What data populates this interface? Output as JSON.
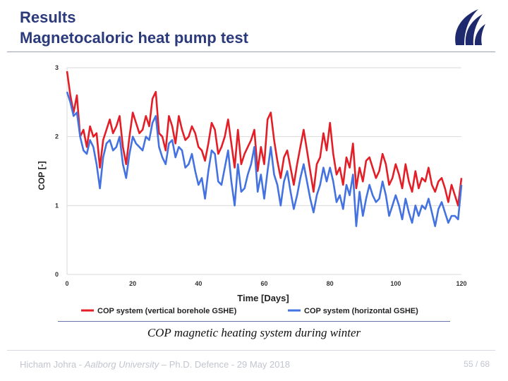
{
  "slide": {
    "title_line1": "Results",
    "title_line2": "Magnetocaloric heat pump test",
    "caption": "COP magnetic heating system during winter",
    "footer_author": "Hicham Johra - ",
    "footer_university": "Aalborg University",
    "footer_rest": " – Ph.D. Defence - 29 May 2018",
    "page_number": "55 / 68"
  },
  "colors": {
    "title": "#2b3a7a",
    "series_vertical": "#e41e26",
    "series_horizontal": "#4472e0",
    "logo": "#1f2a6e"
  },
  "logo_icon": "aau-logo-icon",
  "chart_data": {
    "type": "line",
    "xlabel": "Time [Days]",
    "ylabel": "COP [-]",
    "xlim": [
      0,
      120
    ],
    "ylim": [
      0,
      3
    ],
    "xticks": [
      "0",
      "20",
      "40",
      "60",
      "80",
      "100",
      "120"
    ],
    "yticks": [
      "0",
      "1",
      "2",
      "3"
    ],
    "grid": true,
    "legend_position": "bottom",
    "series": [
      {
        "name": "COP system (vertical borehole GSHE)",
        "color": "#e41e26",
        "x": [
          0,
          1,
          2,
          3,
          4,
          5,
          6,
          7,
          8,
          9,
          10,
          11,
          12,
          13,
          14,
          15,
          16,
          17,
          18,
          19,
          20,
          21,
          22,
          23,
          24,
          25,
          26,
          27,
          28,
          29,
          30,
          31,
          32,
          33,
          34,
          35,
          36,
          37,
          38,
          39,
          40,
          41,
          42,
          43,
          44,
          45,
          46,
          47,
          48,
          49,
          50,
          51,
          52,
          53,
          54,
          55,
          56,
          57,
          58,
          59,
          60,
          61,
          62,
          63,
          64,
          65,
          66,
          67,
          68,
          69,
          70,
          71,
          72,
          73,
          74,
          75,
          76,
          77,
          78,
          79,
          80,
          81,
          82,
          83,
          84,
          85,
          86,
          87,
          88,
          89,
          90,
          91,
          92,
          93,
          94,
          95,
          96,
          97,
          98,
          99,
          100,
          101,
          102,
          103,
          104,
          105,
          106,
          107,
          108,
          109,
          110,
          111,
          112,
          113,
          114,
          115,
          116,
          117,
          118,
          119,
          120
        ],
        "y": [
          2.95,
          2.6,
          2.35,
          2.6,
          2.0,
          2.1,
          1.85,
          2.15,
          2.0,
          2.05,
          1.55,
          1.95,
          2.1,
          2.25,
          2.05,
          2.15,
          2.3,
          1.85,
          1.6,
          2.0,
          2.35,
          2.2,
          2.05,
          2.1,
          2.3,
          2.15,
          2.55,
          2.65,
          2.05,
          2.0,
          1.8,
          2.3,
          2.15,
          1.9,
          2.3,
          2.1,
          1.95,
          2.0,
          2.15,
          2.05,
          1.85,
          1.8,
          1.65,
          1.9,
          2.2,
          2.1,
          1.75,
          1.85,
          2.0,
          2.25,
          1.9,
          1.55,
          2.1,
          1.6,
          1.75,
          1.85,
          1.95,
          2.1,
          1.5,
          1.85,
          1.6,
          2.25,
          2.35,
          1.95,
          1.65,
          1.4,
          1.7,
          1.8,
          1.55,
          1.3,
          1.6,
          1.85,
          2.1,
          1.8,
          1.5,
          1.2,
          1.6,
          1.7,
          2.05,
          1.8,
          2.2,
          1.75,
          1.45,
          1.55,
          1.3,
          1.7,
          1.55,
          1.9,
          1.25,
          1.55,
          1.35,
          1.65,
          1.7,
          1.55,
          1.4,
          1.5,
          1.75,
          1.6,
          1.3,
          1.4,
          1.6,
          1.45,
          1.25,
          1.6,
          1.35,
          1.2,
          1.5,
          1.25,
          1.4,
          1.35,
          1.55,
          1.3,
          1.2,
          1.35,
          1.4,
          1.25,
          1.05,
          1.3,
          1.15,
          1.0,
          1.4
        ]
      },
      {
        "name": "COP system (horizontal GSHE)",
        "color": "#4472e0",
        "x": [
          0,
          1,
          2,
          3,
          4,
          5,
          6,
          7,
          8,
          9,
          10,
          11,
          12,
          13,
          14,
          15,
          16,
          17,
          18,
          19,
          20,
          21,
          22,
          23,
          24,
          25,
          26,
          27,
          28,
          29,
          30,
          31,
          32,
          33,
          34,
          35,
          36,
          37,
          38,
          39,
          40,
          41,
          42,
          43,
          44,
          45,
          46,
          47,
          48,
          49,
          50,
          51,
          52,
          53,
          54,
          55,
          56,
          57,
          58,
          59,
          60,
          61,
          62,
          63,
          64,
          65,
          66,
          67,
          68,
          69,
          70,
          71,
          72,
          73,
          74,
          75,
          76,
          77,
          78,
          79,
          80,
          81,
          82,
          83,
          84,
          85,
          86,
          87,
          88,
          89,
          90,
          91,
          92,
          93,
          94,
          95,
          96,
          97,
          98,
          99,
          100,
          101,
          102,
          103,
          104,
          105,
          106,
          107,
          108,
          109,
          110,
          111,
          112,
          113,
          114,
          115,
          116,
          117,
          118,
          119,
          120
        ],
        "y": [
          2.65,
          2.5,
          2.3,
          2.35,
          2.0,
          1.8,
          1.75,
          1.95,
          1.85,
          1.6,
          1.25,
          1.7,
          1.9,
          1.95,
          1.8,
          1.85,
          2.0,
          1.6,
          1.4,
          1.75,
          2.0,
          1.9,
          1.85,
          1.8,
          2.0,
          1.95,
          2.2,
          2.3,
          1.85,
          1.7,
          1.6,
          1.9,
          1.95,
          1.7,
          1.85,
          1.8,
          1.55,
          1.6,
          1.75,
          1.5,
          1.3,
          1.4,
          1.1,
          1.5,
          1.8,
          1.75,
          1.35,
          1.3,
          1.55,
          1.8,
          1.35,
          1.0,
          1.6,
          1.2,
          1.25,
          1.45,
          1.6,
          1.85,
          1.2,
          1.45,
          1.1,
          1.5,
          1.85,
          1.45,
          1.3,
          1.0,
          1.35,
          1.5,
          1.2,
          0.95,
          1.15,
          1.4,
          1.6,
          1.35,
          1.1,
          0.9,
          1.15,
          1.3,
          1.55,
          1.35,
          1.55,
          1.35,
          1.05,
          1.15,
          0.95,
          1.3,
          1.15,
          1.45,
          0.7,
          1.2,
          0.85,
          1.1,
          1.3,
          1.15,
          1.05,
          1.1,
          1.35,
          1.15,
          0.85,
          1.0,
          1.15,
          1.0,
          0.8,
          1.1,
          0.9,
          0.75,
          1.0,
          0.85,
          1.0,
          0.95,
          1.1,
          0.9,
          0.7,
          0.95,
          1.05,
          0.9,
          0.75,
          0.85,
          0.85,
          0.8,
          1.3
        ]
      }
    ]
  }
}
